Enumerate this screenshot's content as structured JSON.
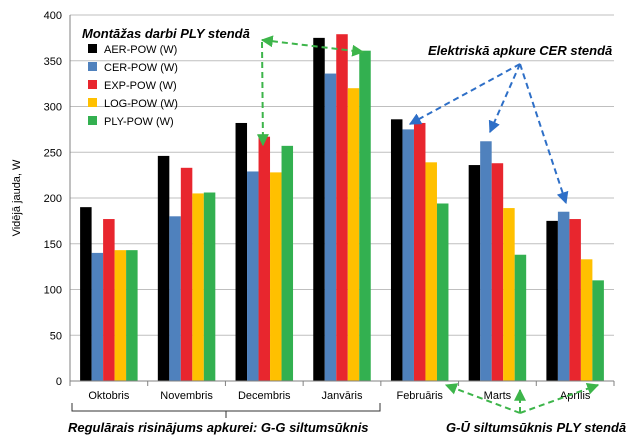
{
  "chart_data": {
    "type": "bar",
    "title": "",
    "xlabel": "",
    "ylabel": "Vidējā jauda, W",
    "ylim": [
      0,
      400
    ],
    "yticks": [
      0,
      50,
      100,
      150,
      200,
      250,
      300,
      350,
      400
    ],
    "grid": true,
    "legend_position": "top-left",
    "categories": [
      "Oktobris",
      "Novembris",
      "Decembris",
      "Janvāris",
      "Februāris",
      "Marts",
      "Aprīlis"
    ],
    "series": [
      {
        "name": "AER-POW  (W)",
        "color": "#000000",
        "values": [
          190,
          246,
          282,
          375,
          286,
          236,
          175
        ]
      },
      {
        "name": "CER-POW  (W)",
        "color": "#4f81bd",
        "values": [
          140,
          180,
          229,
          336,
          275,
          262,
          185
        ]
      },
      {
        "name": "EXP-POW  (W)",
        "color": "#e8262e",
        "values": [
          177,
          233,
          267,
          379,
          282,
          238,
          177
        ]
      },
      {
        "name": "LOG-POW  (W)",
        "color": "#ffc000",
        "values": [
          143,
          205,
          228,
          320,
          239,
          189,
          133
        ]
      },
      {
        "name": "PLY-POW  (W)",
        "color": "#33b050",
        "values": [
          143,
          206,
          257,
          361,
          194,
          138,
          110
        ]
      }
    ],
    "annotations": {
      "montazas": "Montāžas darbi PLY stendā",
      "elektriska": "Elektriskā apkure CER stendā",
      "regularais": "Regulārais risinājums apkurei: G-G siltumsūknis",
      "gu": "G-Ū siltumsūknis PLY stendā"
    }
  }
}
